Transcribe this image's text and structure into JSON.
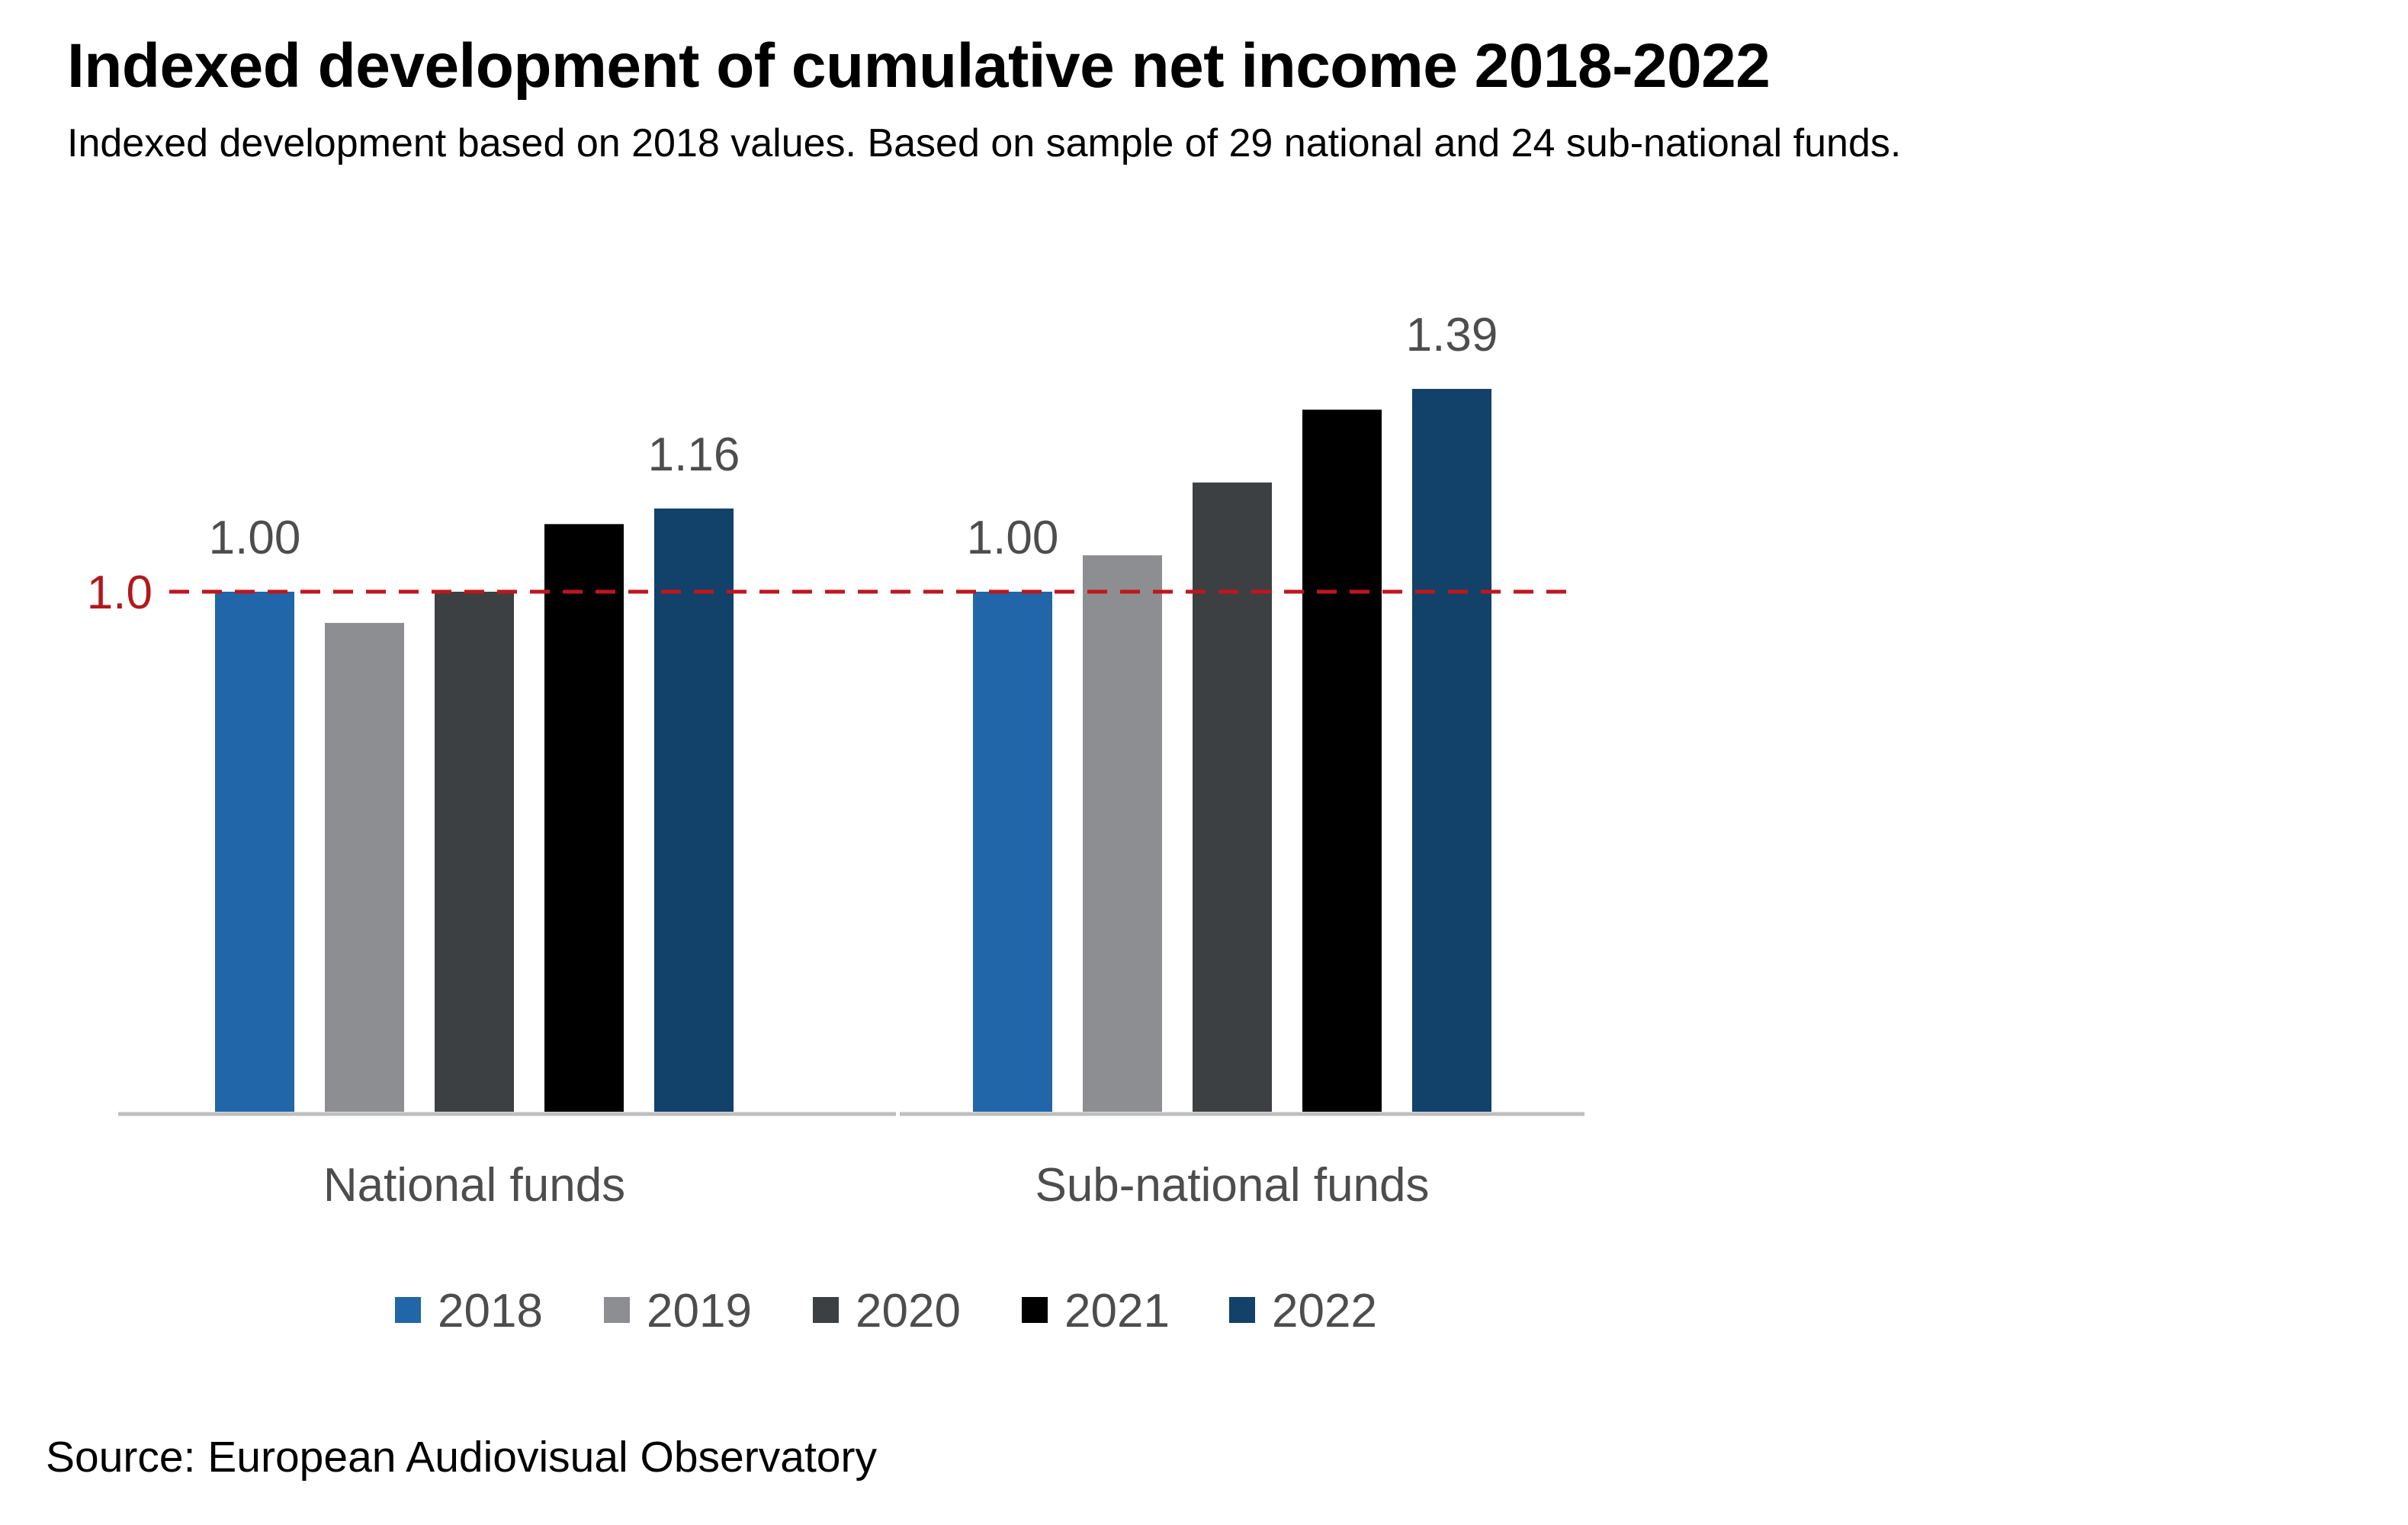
{
  "title": "Indexed development of cumulative net income 2018-2022",
  "subtitle": "Indexed development based on 2018 values. Based on sample of 29 national and 24 sub-national funds.",
  "source": "Source: European Audiovisual Observatory",
  "colors": {
    "2018": "#2166a8",
    "2019": "#8d8e92",
    "2020": "#3d4043",
    "2021": "#000000",
    "2022": "#12416a",
    "reference_line": "#c0161d",
    "axis": "#bfbfbf"
  },
  "chart_data": {
    "type": "bar",
    "categories": [
      "National funds",
      "Sub-national funds"
    ],
    "series": [
      {
        "name": "2018",
        "values": [
          1.0,
          1.0
        ]
      },
      {
        "name": "2019",
        "values": [
          0.94,
          1.07
        ]
      },
      {
        "name": "2020",
        "values": [
          1.0,
          1.21
        ]
      },
      {
        "name": "2021",
        "values": [
          1.13,
          1.35
        ]
      },
      {
        "name": "2022",
        "values": [
          1.16,
          1.39
        ]
      }
    ],
    "data_labels": [
      {
        "category": 0,
        "series": 0,
        "text": "1.00"
      },
      {
        "category": 0,
        "series": 4,
        "text": "1.16"
      },
      {
        "category": 1,
        "series": 0,
        "text": "1.00"
      },
      {
        "category": 1,
        "series": 4,
        "text": "1.39"
      }
    ],
    "reference_line": {
      "value": 1.0,
      "label": "1.0",
      "style": "dashed"
    },
    "ylim": [
      0,
      1.39
    ],
    "grid": false,
    "legend_position": "bottom",
    "title": "Indexed development of cumulative net income 2018-2022",
    "xlabel": "",
    "ylabel": ""
  }
}
